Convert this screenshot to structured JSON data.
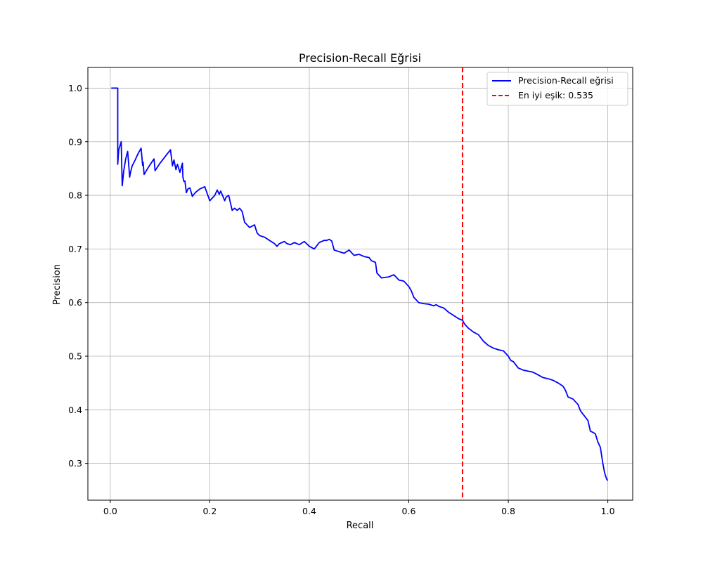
{
  "chart_data": {
    "type": "line",
    "title": "Precision-Recall Eğrisi",
    "xlabel": "Recall",
    "ylabel": "Precision",
    "xlim": [
      -0.045,
      1.05
    ],
    "ylim": [
      0.2314,
      1.0386
    ],
    "xticks": [
      0.0,
      0.2,
      0.4,
      0.6,
      0.8,
      1.0
    ],
    "xtick_labels": [
      "0.0",
      "0.2",
      "0.4",
      "0.6",
      "0.8",
      "1.0"
    ],
    "yticks": [
      0.3,
      0.4,
      0.5,
      0.6,
      0.7,
      0.8,
      0.9,
      1.0
    ],
    "ytick_labels": [
      "0.3",
      "0.4",
      "0.5",
      "0.6",
      "0.7",
      "0.8",
      "0.9",
      "1.0"
    ],
    "grid": true,
    "legend_position": "top-right",
    "series": [
      {
        "name": "Precision-Recall eğrisi",
        "color": "#0000ff",
        "style": "solid",
        "x": [
          0.002,
          0.015,
          0.015,
          0.017,
          0.022,
          0.024,
          0.027,
          0.031,
          0.035,
          0.039,
          0.04,
          0.044,
          0.05,
          0.056,
          0.062,
          0.065,
          0.066,
          0.068,
          0.075,
          0.082,
          0.088,
          0.09,
          0.1,
          0.11,
          0.121,
          0.125,
          0.128,
          0.132,
          0.135,
          0.14,
          0.145,
          0.146,
          0.148,
          0.15,
          0.153,
          0.156,
          0.16,
          0.165,
          0.168,
          0.172,
          0.18,
          0.19,
          0.2,
          0.21,
          0.215,
          0.219,
          0.222,
          0.23,
          0.233,
          0.238,
          0.245,
          0.25,
          0.255,
          0.26,
          0.265,
          0.27,
          0.275,
          0.28,
          0.29,
          0.295,
          0.3,
          0.31,
          0.32,
          0.33,
          0.335,
          0.34,
          0.345,
          0.35,
          0.355,
          0.362,
          0.37,
          0.38,
          0.39,
          0.4,
          0.41,
          0.42,
          0.43,
          0.435,
          0.44,
          0.445,
          0.45,
          0.46,
          0.47,
          0.48,
          0.49,
          0.5,
          0.51,
          0.52,
          0.525,
          0.533,
          0.536,
          0.545,
          0.56,
          0.57,
          0.58,
          0.59,
          0.6,
          0.605,
          0.61,
          0.62,
          0.63,
          0.64,
          0.65,
          0.655,
          0.66,
          0.67,
          0.68,
          0.69,
          0.7,
          0.705,
          0.708,
          0.712,
          0.72,
          0.73,
          0.74,
          0.75,
          0.76,
          0.77,
          0.78,
          0.79,
          0.8,
          0.805,
          0.81,
          0.82,
          0.83,
          0.84,
          0.85,
          0.86,
          0.87,
          0.88,
          0.89,
          0.9,
          0.91,
          0.915,
          0.92,
          0.93,
          0.94,
          0.945,
          0.95,
          0.96,
          0.965,
          0.97,
          0.975,
          0.98,
          0.985,
          0.99,
          0.993,
          0.995,
          0.998,
          1.0
        ],
        "y": [
          1.0,
          1.0,
          0.858,
          0.885,
          0.9,
          0.818,
          0.845,
          0.868,
          0.882,
          0.834,
          0.84,
          0.855,
          0.866,
          0.878,
          0.888,
          0.856,
          0.862,
          0.839,
          0.85,
          0.86,
          0.868,
          0.846,
          0.86,
          0.872,
          0.885,
          0.855,
          0.866,
          0.848,
          0.858,
          0.843,
          0.86,
          0.834,
          0.826,
          0.827,
          0.805,
          0.812,
          0.814,
          0.798,
          0.802,
          0.806,
          0.812,
          0.816,
          0.79,
          0.8,
          0.81,
          0.802,
          0.808,
          0.79,
          0.797,
          0.8,
          0.772,
          0.776,
          0.772,
          0.776,
          0.77,
          0.75,
          0.745,
          0.74,
          0.745,
          0.73,
          0.725,
          0.722,
          0.716,
          0.71,
          0.705,
          0.71,
          0.712,
          0.714,
          0.71,
          0.708,
          0.712,
          0.708,
          0.714,
          0.705,
          0.7,
          0.712,
          0.716,
          0.716,
          0.718,
          0.715,
          0.698,
          0.695,
          0.692,
          0.698,
          0.688,
          0.69,
          0.686,
          0.684,
          0.678,
          0.675,
          0.655,
          0.646,
          0.648,
          0.652,
          0.642,
          0.64,
          0.63,
          0.622,
          0.61,
          0.6,
          0.598,
          0.597,
          0.594,
          0.596,
          0.593,
          0.59,
          0.582,
          0.576,
          0.57,
          0.568,
          0.567,
          0.56,
          0.552,
          0.545,
          0.54,
          0.528,
          0.52,
          0.515,
          0.512,
          0.51,
          0.5,
          0.492,
          0.49,
          0.478,
          0.474,
          0.472,
          0.47,
          0.465,
          0.46,
          0.458,
          0.455,
          0.45,
          0.444,
          0.436,
          0.424,
          0.42,
          0.41,
          0.398,
          0.392,
          0.38,
          0.36,
          0.358,
          0.355,
          0.34,
          0.33,
          0.3,
          0.285,
          0.278,
          0.27,
          0.268
        ]
      },
      {
        "name": "En iyi eşik: 0.535",
        "color": "#ff0000",
        "style": "dashed",
        "type": "vline",
        "x": 0.708
      }
    ]
  }
}
